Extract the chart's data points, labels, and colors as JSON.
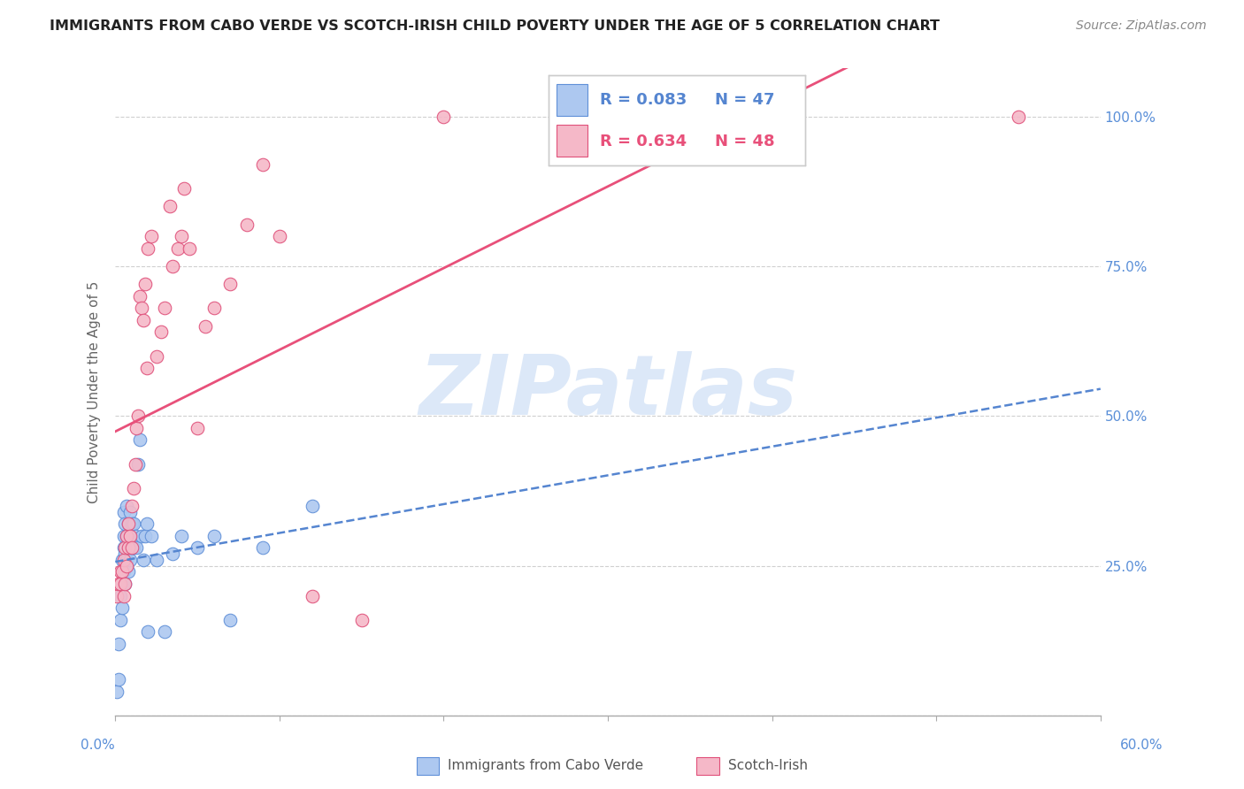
{
  "title": "IMMIGRANTS FROM CABO VERDE VS SCOTCH-IRISH CHILD POVERTY UNDER THE AGE OF 5 CORRELATION CHART",
  "source": "Source: ZipAtlas.com",
  "ylabel": "Child Poverty Under the Age of 5",
  "y_tick_labels": [
    "",
    "25.0%",
    "50.0%",
    "75.0%",
    "100.0%"
  ],
  "y_tick_values": [
    0.0,
    0.25,
    0.5,
    0.75,
    1.0
  ],
  "x_tick_values": [
    0.0,
    0.1,
    0.2,
    0.3,
    0.4,
    0.5,
    0.6
  ],
  "legend_blue_r": "R = 0.083",
  "legend_blue_n": "N = 47",
  "legend_pink_r": "R = 0.634",
  "legend_pink_n": "N = 48",
  "blue_color": "#adc8f0",
  "pink_color": "#f5b8c8",
  "blue_edge_color": "#6090d8",
  "pink_edge_color": "#e0507a",
  "blue_line_color": "#5585d0",
  "pink_line_color": "#e8507a",
  "label_color": "#5a8fd8",
  "watermark_color": "#dce8f8",
  "blue_x": [
    0.001,
    0.002,
    0.002,
    0.003,
    0.003,
    0.004,
    0.004,
    0.004,
    0.005,
    0.005,
    0.005,
    0.005,
    0.006,
    0.006,
    0.006,
    0.007,
    0.007,
    0.007,
    0.008,
    0.008,
    0.008,
    0.009,
    0.009,
    0.009,
    0.01,
    0.01,
    0.011,
    0.011,
    0.012,
    0.013,
    0.014,
    0.015,
    0.016,
    0.017,
    0.018,
    0.019,
    0.02,
    0.022,
    0.025,
    0.03,
    0.035,
    0.04,
    0.05,
    0.06,
    0.07,
    0.09,
    0.12
  ],
  "blue_y": [
    0.04,
    0.06,
    0.12,
    0.16,
    0.2,
    0.18,
    0.22,
    0.26,
    0.24,
    0.28,
    0.3,
    0.34,
    0.22,
    0.27,
    0.32,
    0.26,
    0.3,
    0.35,
    0.24,
    0.28,
    0.32,
    0.26,
    0.3,
    0.34,
    0.28,
    0.32,
    0.28,
    0.32,
    0.3,
    0.28,
    0.42,
    0.46,
    0.3,
    0.26,
    0.3,
    0.32,
    0.14,
    0.3,
    0.26,
    0.14,
    0.27,
    0.3,
    0.28,
    0.3,
    0.16,
    0.28,
    0.35
  ],
  "pink_x": [
    0.001,
    0.002,
    0.003,
    0.003,
    0.004,
    0.005,
    0.005,
    0.006,
    0.006,
    0.007,
    0.007,
    0.008,
    0.008,
    0.009,
    0.01,
    0.01,
    0.011,
    0.012,
    0.013,
    0.014,
    0.015,
    0.016,
    0.017,
    0.018,
    0.019,
    0.02,
    0.022,
    0.025,
    0.028,
    0.03,
    0.033,
    0.035,
    0.038,
    0.04,
    0.042,
    0.045,
    0.05,
    0.055,
    0.06,
    0.07,
    0.08,
    0.09,
    0.1,
    0.12,
    0.15,
    0.2,
    0.3,
    0.55
  ],
  "pink_y": [
    0.2,
    0.22,
    0.22,
    0.24,
    0.24,
    0.2,
    0.26,
    0.22,
    0.28,
    0.25,
    0.3,
    0.28,
    0.32,
    0.3,
    0.28,
    0.35,
    0.38,
    0.42,
    0.48,
    0.5,
    0.7,
    0.68,
    0.66,
    0.72,
    0.58,
    0.78,
    0.8,
    0.6,
    0.64,
    0.68,
    0.85,
    0.75,
    0.78,
    0.8,
    0.88,
    0.78,
    0.48,
    0.65,
    0.68,
    0.72,
    0.82,
    0.92,
    0.8,
    0.2,
    0.16,
    1.0,
    1.0,
    1.0
  ]
}
